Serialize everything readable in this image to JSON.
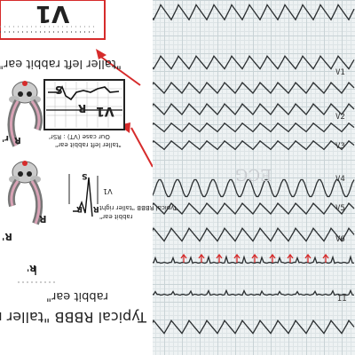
{
  "top_left": {
    "card_letters": "V1",
    "ear_caption": "\"taller left rabbit ear\""
  },
  "inset": {
    "lead": "V1",
    "s": "S",
    "r": "R",
    "caption_line1": "Our case (VT) : RSr'",
    "caption_line2": "\"taller left rabbit ear\""
  },
  "rabbit_one": {
    "r_left": "R",
    "r_right": "r'"
  },
  "rabbit_two": {
    "r_left": "R",
    "r_right": "R'"
  },
  "rbbb_small": {
    "lead": "V1",
    "s": "S",
    "r": "R",
    "r_prime": "R'",
    "caption_line1": "Typical RBBB \"taller right",
    "caption_line2": "rabbit ear\""
  },
  "bottom_caption": {
    "r_prime": "R'",
    "line1": "Typical RBBB \"taller r",
    "line2": "rabbit ear\""
  },
  "ecg": {
    "lead_labels": [
      "V1",
      "V2",
      "V3",
      "V4",
      "V5",
      "V6",
      "II"
    ],
    "handwriting": "ECG"
  },
  "colors": {
    "accent_red": "#d62b2b",
    "trace": "#2a2e30",
    "grid": "#c9d3d6"
  }
}
